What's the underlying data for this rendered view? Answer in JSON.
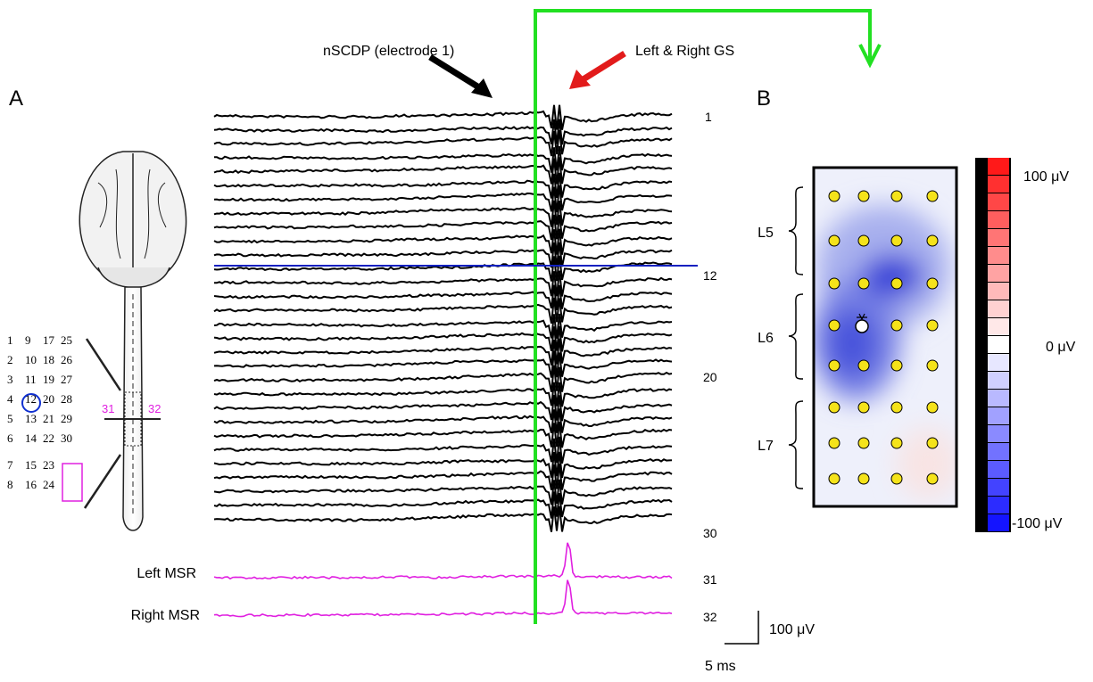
{
  "panel_a": {
    "label": "A",
    "annotations": {
      "nscdp": "nSCDP (electrode 1)",
      "gs": "Left & Right GS"
    },
    "electrode_grid": {
      "rows": [
        [
          "1",
          "9",
          "17",
          "25"
        ],
        [
          "2",
          "10",
          "18",
          "26"
        ],
        [
          "3",
          "11",
          "19",
          "27"
        ],
        [
          "4",
          "12",
          "20",
          "28"
        ],
        [
          "5",
          "13",
          "21",
          "29"
        ],
        [
          "6",
          "14",
          "22",
          "30"
        ],
        [
          "7",
          "15",
          "23"
        ],
        [
          "8",
          "16",
          "24"
        ]
      ],
      "left_label": "31",
      "right_label": "32"
    },
    "trace_labels": [
      "1",
      "12",
      "20",
      "30",
      "31",
      "32"
    ],
    "msr_labels": [
      "Left MSR",
      "Right MSR"
    ],
    "scale": {
      "amplitude": "100 μV",
      "time": "5 ms"
    }
  },
  "panel_b": {
    "label": "B",
    "segments": [
      "L5",
      "L6",
      "L7"
    ],
    "colorbar": [
      "100 μV",
      "0 μV",
      "-100 μV"
    ]
  }
}
